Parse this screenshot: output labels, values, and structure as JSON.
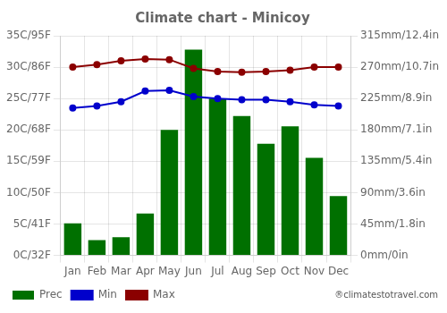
{
  "chart_data": {
    "type": "bar",
    "title": "Climate chart - Minicoy",
    "categories": [
      "Jan",
      "Feb",
      "Mar",
      "Apr",
      "May",
      "Jun",
      "Jul",
      "Aug",
      "Sep",
      "Oct",
      "Nov",
      "Dec"
    ],
    "series": [
      {
        "name": "Prec",
        "type": "bar",
        "axis": "y2",
        "color": "#007000",
        "values": [
          46,
          22,
          26,
          60,
          180,
          295,
          225,
          200,
          160,
          185,
          140,
          85
        ]
      },
      {
        "name": "Min",
        "type": "line",
        "marker": "circle",
        "color": "#0000cc",
        "values": [
          23.5,
          23.8,
          24.5,
          26.2,
          26.3,
          25.3,
          25.0,
          24.8,
          24.8,
          24.5,
          24.0,
          23.8
        ]
      },
      {
        "name": "Max",
        "type": "line",
        "marker": "circle",
        "color": "#8b0000",
        "values": [
          30.0,
          30.4,
          31.0,
          31.3,
          31.2,
          29.8,
          29.3,
          29.2,
          29.3,
          29.5,
          30.0,
          30.0
        ]
      }
    ],
    "ylim": [
      0,
      35
    ],
    "yticks": [
      {
        "value": 0,
        "label": "0C/32F"
      },
      {
        "value": 5,
        "label": "5C/41F"
      },
      {
        "value": 10,
        "label": "10C/50F"
      },
      {
        "value": 15,
        "label": "15C/59F"
      },
      {
        "value": 20,
        "label": "20C/68F"
      },
      {
        "value": 25,
        "label": "25C/77F"
      },
      {
        "value": 30,
        "label": "30C/86F"
      },
      {
        "value": 35,
        "label": "35C/95F"
      }
    ],
    "y2lim": [
      0,
      315
    ],
    "y2ticks": [
      {
        "value": 0,
        "label": "0mm/0in"
      },
      {
        "value": 45,
        "label": "45mm/1.8in"
      },
      {
        "value": 90,
        "label": "90mm/3.6in"
      },
      {
        "value": 135,
        "label": "135mm/5.4in"
      },
      {
        "value": 180,
        "label": "180mm/7.1in"
      },
      {
        "value": 225,
        "label": "225mm/8.9in"
      },
      {
        "value": 270,
        "label": "270mm/10.7in"
      },
      {
        "value": 315,
        "label": "315mm/12.4in"
      }
    ],
    "grid": true,
    "legend": "lower left",
    "annotations": [
      "®climatestotravel.com"
    ]
  }
}
